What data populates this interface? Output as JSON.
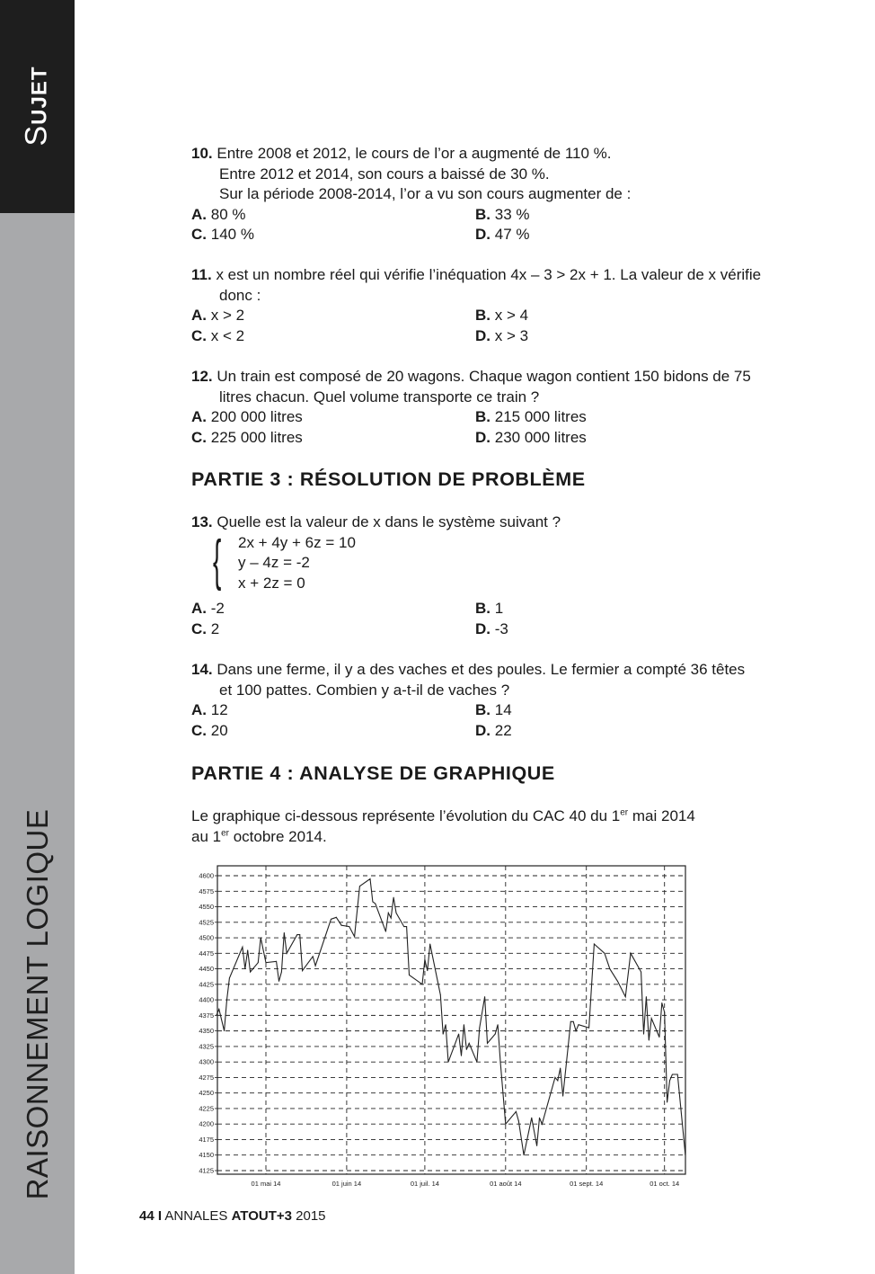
{
  "sidebar": {
    "tab_first": "S",
    "tab_rest": "UJET",
    "section": "RAISONNEMENT LOGIQUE"
  },
  "questions": [
    {
      "num": "10.",
      "lines": [
        "Entre 2008 et 2012, le cours de l’or a augmenté de 110 %.",
        "Entre 2012 et 2014, son cours a baissé de 30 %.",
        "Sur la période 2008-2014, l’or a vu son cours augmenter de :"
      ],
      "answers": [
        {
          "k": "A.",
          "v": "80 %"
        },
        {
          "k": "B.",
          "v": "33 %"
        },
        {
          "k": "C.",
          "v": "140 %"
        },
        {
          "k": "D.",
          "v": "47 %"
        }
      ]
    },
    {
      "num": "11.",
      "lines": [
        "x est un nombre réel qui vérifie l’inéquation 4x – 3 > 2x + 1. La valeur de x vérifie",
        "donc :"
      ],
      "answers": [
        {
          "k": "A.",
          "v": "x > 2"
        },
        {
          "k": "B.",
          "v": "x > 4"
        },
        {
          "k": "C.",
          "v": "x < 2"
        },
        {
          "k": "D.",
          "v": "x > 3"
        }
      ]
    },
    {
      "num": "12.",
      "lines": [
        "Un train est composé de 20 wagons. Chaque wagon contient 150 bidons de 75",
        "litres chacun. Quel volume transporte ce train ?"
      ],
      "answers": [
        {
          "k": "A.",
          "v": "200 000 litres"
        },
        {
          "k": "B.",
          "v": "215 000 litres"
        },
        {
          "k": "C.",
          "v": "225 000 litres"
        },
        {
          "k": "D.",
          "v": "230 000 litres"
        }
      ]
    },
    {
      "num": "13.",
      "lines": [
        "Quelle est la valeur de x dans le système suivant ?"
      ],
      "system": [
        "2x + 4y + 6z = 10",
        "y – 4z = -2",
        "x + 2z = 0"
      ],
      "answers": [
        {
          "k": "A.",
          "v": "-2"
        },
        {
          "k": "B.",
          "v": "1"
        },
        {
          "k": "C.",
          "v": "2"
        },
        {
          "k": "D.",
          "v": "-3"
        }
      ]
    },
    {
      "num": "14.",
      "lines": [
        "Dans une ferme, il y a des vaches et des poules. Le fermier a compté 36 têtes",
        "et 100 pattes. Combien y a-t-il de vaches ?"
      ],
      "answers": [
        {
          "k": "A.",
          "v": "12"
        },
        {
          "k": "B.",
          "v": "14"
        },
        {
          "k": "C.",
          "v": "20"
        },
        {
          "k": "D.",
          "v": "22"
        }
      ]
    }
  ],
  "sections": {
    "part3": "PARTIE 3 : RÉSOLUTION DE PROBLÈME",
    "part4": "PARTIE 4 : ANALYSE DE GRAPHIQUE"
  },
  "intro": {
    "a": "Le graphique ci-dessous représente l’évolution du CAC 40 du 1",
    "sup1": "er",
    "b": " mai 2014",
    "c": "au 1",
    "sup2": "er",
    "d": " octobre 2014."
  },
  "footer": {
    "page": "44",
    "sep": "I",
    "annales": "ANNALES",
    "brand": "ATOUT+3",
    "year": "2015"
  },
  "chart_data": {
    "type": "line",
    "title": "",
    "xlabel": "",
    "ylabel": "",
    "ylim": [
      4110,
      4620
    ],
    "yticks": [
      4125,
      4150,
      4175,
      4200,
      4225,
      4250,
      4275,
      4300,
      4325,
      4350,
      4375,
      4400,
      4425,
      4450,
      4475,
      4500,
      4525,
      4550,
      4575,
      4600
    ],
    "xticks": [
      {
        "date": "2014-05-01",
        "label": "01 mai 14"
      },
      {
        "date": "2014-06-01",
        "label": "01 juin 14"
      },
      {
        "date": "2014-07-01",
        "label": "01 juil. 14"
      },
      {
        "date": "2014-08-01",
        "label": "01 août 14"
      },
      {
        "date": "2014-09-01",
        "label": "01 sept. 14"
      },
      {
        "date": "2014-10-01",
        "label": "01 oct. 14"
      }
    ],
    "xlim": [
      "2014-04-11",
      "2014-10-09"
    ],
    "grid": true,
    "series": [
      {
        "color": "#222222",
        "points": [
          [
            "2014-04-12",
            4375
          ],
          [
            "2014-04-13",
            4385
          ],
          [
            "2014-04-15",
            4350
          ],
          [
            "2014-04-16",
            4400
          ],
          [
            "2014-04-17",
            4435
          ],
          [
            "2014-04-22",
            4485
          ],
          [
            "2014-04-23",
            4450
          ],
          [
            "2014-04-24",
            4480
          ],
          [
            "2014-04-25",
            4445
          ],
          [
            "2014-04-28",
            4460
          ],
          [
            "2014-04-29",
            4500
          ],
          [
            "2014-05-01",
            4460
          ],
          [
            "2014-05-05",
            4462
          ],
          [
            "2014-05-06",
            4430
          ],
          [
            "2014-05-07",
            4445
          ],
          [
            "2014-05-08",
            4508
          ],
          [
            "2014-05-09",
            4475
          ],
          [
            "2014-05-13",
            4505
          ],
          [
            "2014-05-14",
            4505
          ],
          [
            "2014-05-15",
            4447
          ],
          [
            "2014-05-19",
            4470
          ],
          [
            "2014-05-20",
            4455
          ],
          [
            "2014-05-26",
            4530
          ],
          [
            "2014-05-28",
            4533
          ],
          [
            "2014-05-30",
            4520
          ],
          [
            "2014-06-02",
            4518
          ],
          [
            "2014-06-04",
            4502
          ],
          [
            "2014-06-06",
            4583
          ],
          [
            "2014-06-10",
            4595
          ],
          [
            "2014-06-11",
            4558
          ],
          [
            "2014-06-12",
            4555
          ],
          [
            "2014-06-16",
            4510
          ],
          [
            "2014-06-17",
            4540
          ],
          [
            "2014-06-18",
            4532
          ],
          [
            "2014-06-19",
            4565
          ],
          [
            "2014-06-20",
            4540
          ],
          [
            "2014-06-23",
            4518
          ],
          [
            "2014-06-24",
            4518
          ],
          [
            "2014-06-25",
            4440
          ],
          [
            "2014-06-30",
            4425
          ],
          [
            "2014-07-01",
            4465
          ],
          [
            "2014-07-02",
            4447
          ],
          [
            "2014-07-03",
            4490
          ],
          [
            "2014-07-07",
            4408
          ],
          [
            "2014-07-08",
            4345
          ],
          [
            "2014-07-09",
            4360
          ],
          [
            "2014-07-10",
            4300
          ],
          [
            "2014-07-14",
            4345
          ],
          [
            "2014-07-15",
            4310
          ],
          [
            "2014-07-16",
            4360
          ],
          [
            "2014-07-17",
            4320
          ],
          [
            "2014-07-18",
            4330
          ],
          [
            "2014-07-21",
            4300
          ],
          [
            "2014-07-22",
            4355
          ],
          [
            "2014-07-24",
            4405
          ],
          [
            "2014-07-25",
            4330
          ],
          [
            "2014-07-28",
            4345
          ],
          [
            "2014-07-29",
            4360
          ],
          [
            "2014-07-30",
            4300
          ],
          [
            "2014-08-01",
            4200
          ],
          [
            "2014-08-05",
            4220
          ],
          [
            "2014-08-06",
            4205
          ],
          [
            "2014-08-08",
            4150
          ],
          [
            "2014-08-11",
            4210
          ],
          [
            "2014-08-13",
            4165
          ],
          [
            "2014-08-14",
            4210
          ],
          [
            "2014-08-15",
            4200
          ],
          [
            "2014-08-20",
            4275
          ],
          [
            "2014-08-21",
            4270
          ],
          [
            "2014-08-22",
            4290
          ],
          [
            "2014-08-23",
            4245
          ],
          [
            "2014-08-26",
            4365
          ],
          [
            "2014-08-27",
            4365
          ],
          [
            "2014-08-28",
            4350
          ],
          [
            "2014-08-29",
            4360
          ],
          [
            "2014-09-02",
            4355
          ],
          [
            "2014-09-04",
            4490
          ],
          [
            "2014-09-08",
            4475
          ],
          [
            "2014-09-10",
            4450
          ],
          [
            "2014-09-13",
            4430
          ],
          [
            "2014-09-16",
            4405
          ],
          [
            "2014-09-18",
            4475
          ],
          [
            "2014-09-22",
            4445
          ],
          [
            "2014-09-23",
            4345
          ],
          [
            "2014-09-24",
            4405
          ],
          [
            "2014-09-25",
            4335
          ],
          [
            "2014-09-26",
            4370
          ],
          [
            "2014-09-29",
            4340
          ],
          [
            "2014-09-30",
            4395
          ],
          [
            "2014-10-01",
            4380
          ],
          [
            "2014-10-02",
            4235
          ],
          [
            "2014-10-03",
            4270
          ],
          [
            "2014-10-04",
            4280
          ],
          [
            "2014-10-06",
            4280
          ],
          [
            "2014-10-09",
            4150
          ]
        ]
      }
    ]
  }
}
